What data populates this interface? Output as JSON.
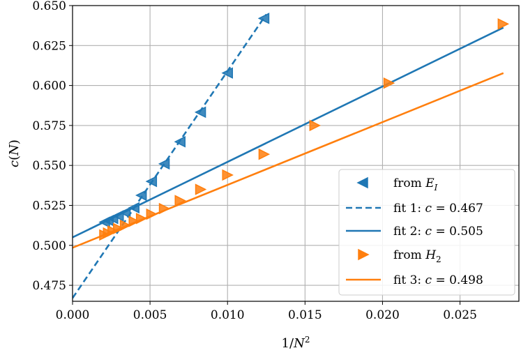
{
  "chart_data": {
    "type": "scatter",
    "title": "",
    "xlabel": "1/N²",
    "ylabel": "c(N)",
    "xlim": [
      0.0,
      0.0288
    ],
    "ylim": [
      0.465,
      0.65
    ],
    "grid": true,
    "legend_position": "lower-right",
    "x_ticks": [
      "0.000",
      "0.005",
      "0.010",
      "0.015",
      "0.020",
      "0.025"
    ],
    "y_ticks": [
      "0.475",
      "0.500",
      "0.525",
      "0.550",
      "0.575",
      "0.600",
      "0.625",
      "0.650"
    ],
    "colors": {
      "blue": "#1f77b4",
      "orange": "#ff7f0e"
    },
    "series": [
      {
        "name": "from E_I",
        "legend_label": "from E_I",
        "kind": "points",
        "marker": "triangle-left",
        "color": "#1f77b4",
        "x": [
          0.00207,
          0.00231,
          0.0026,
          0.00296,
          0.0034,
          0.00397,
          0.00444,
          0.0051,
          0.00592,
          0.00694,
          0.00826,
          0.01,
          0.01235
        ],
        "y": [
          0.5145,
          0.5155,
          0.5168,
          0.5185,
          0.5205,
          0.5235,
          0.5313,
          0.54,
          0.551,
          0.5648,
          0.5833,
          0.6078,
          0.642
        ]
      },
      {
        "name": "fit 1",
        "legend_label": "fit 1: c = 0.467",
        "kind": "line",
        "dash": true,
        "color": "#1f77b4",
        "intercept": 0.467,
        "slope": 14.2,
        "x_range": [
          0.0,
          0.0125
        ]
      },
      {
        "name": "fit 2",
        "legend_label": "fit 2: c = 0.505",
        "kind": "line",
        "dash": false,
        "color": "#1f77b4",
        "intercept": 0.505,
        "slope": 4.72,
        "x_range": [
          0.0,
          0.0278
        ]
      },
      {
        "name": "from H_2",
        "legend_label": "from H_2",
        "kind": "points",
        "marker": "triangle-right",
        "color": "#ff7f0e",
        "x": [
          0.00207,
          0.00231,
          0.0026,
          0.00296,
          0.0034,
          0.00397,
          0.00444,
          0.0051,
          0.00592,
          0.00694,
          0.00826,
          0.01,
          0.01235,
          0.01563,
          0.02041,
          0.02778
        ],
        "y": [
          0.5065,
          0.5077,
          0.509,
          0.5105,
          0.5125,
          0.515,
          0.5168,
          0.5195,
          0.523,
          0.528,
          0.535,
          0.544,
          0.557,
          0.575,
          0.6015,
          0.6385
        ]
      },
      {
        "name": "fit 3",
        "legend_label": "fit 3: c = 0.498",
        "kind": "line",
        "dash": false,
        "color": "#ff7f0e",
        "intercept": 0.4985,
        "slope": 3.93,
        "x_range": [
          0.0,
          0.0278
        ]
      }
    ]
  }
}
